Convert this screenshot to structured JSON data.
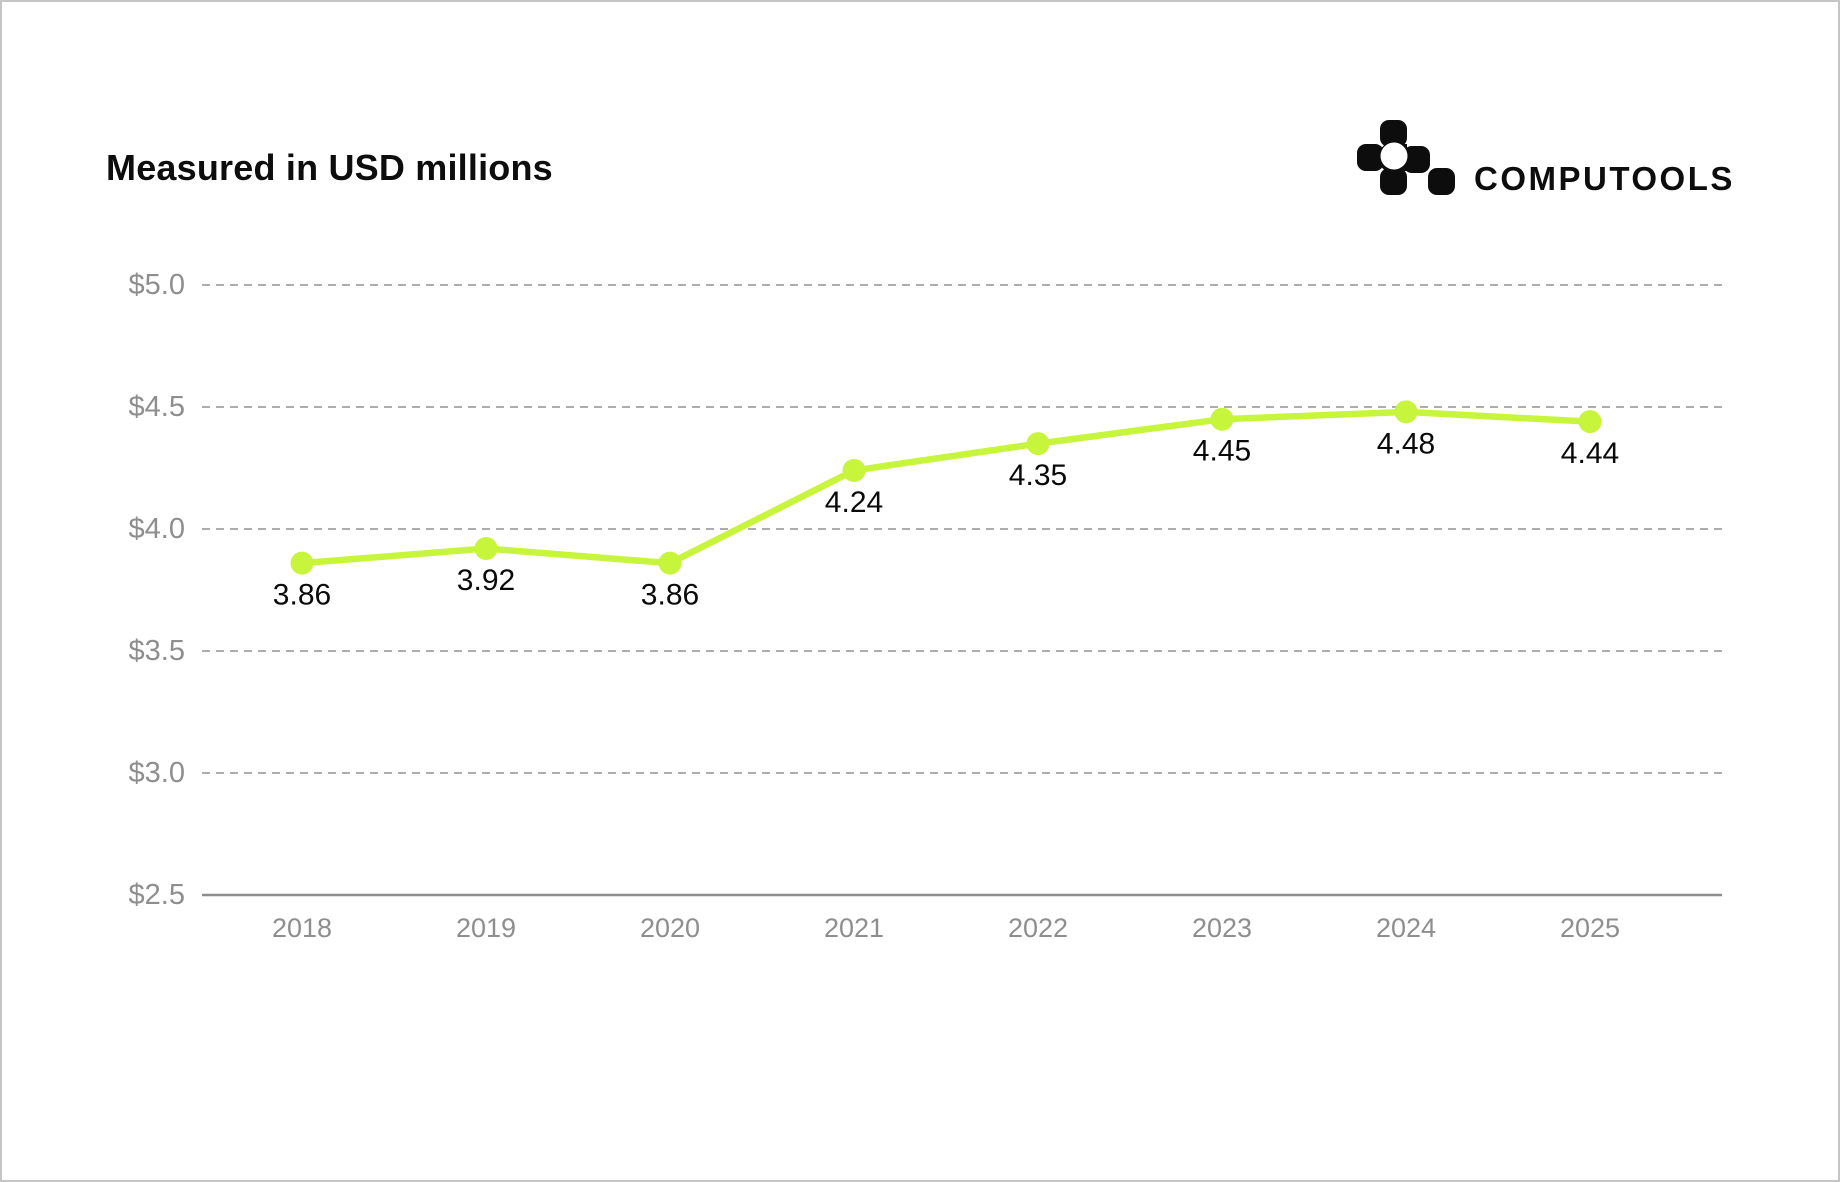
{
  "page": {
    "title": "Measured in USD millions",
    "brand": {
      "name": "COMPUTOOLS",
      "logo_icon": "computools-pixel-mark"
    }
  },
  "chart_data": {
    "type": "line",
    "title": "Measured in USD millions",
    "categories": [
      "2018",
      "2019",
      "2020",
      "2021",
      "2022",
      "2023",
      "2024",
      "2025"
    ],
    "series": [
      {
        "name": "USD millions",
        "values": [
          3.86,
          3.92,
          3.86,
          4.24,
          4.35,
          4.45,
          4.48,
          4.44
        ]
      }
    ],
    "data_labels": [
      "3.86",
      "3.92",
      "3.86",
      "4.24",
      "4.35",
      "4.45",
      "4.48",
      "4.44"
    ],
    "xlabel": "",
    "ylabel": "",
    "y_ticks": [
      {
        "label": "$2.5",
        "value": 2.5
      },
      {
        "label": "$3.0",
        "value": 3.0
      },
      {
        "label": "$3.5",
        "value": 3.5
      },
      {
        "label": "$4.0",
        "value": 4.0
      },
      {
        "label": "$4.5",
        "value": 4.5
      },
      {
        "label": "$5.0",
        "value": 5.0
      }
    ],
    "ylim": [
      2.5,
      5.0
    ],
    "grid": "horizontal dashed, solid baseline at 2.5",
    "legend": "none",
    "colors": {
      "line": "#c6f53c",
      "marker": "#c6f53c",
      "grid_dashed": "#adadad",
      "baseline": "#8d8d8d",
      "axis_text": "#8e8e8e",
      "data_label_text": "#0a0a0a",
      "title_text": "#0d0d0d",
      "background": "#ffffff"
    }
  }
}
